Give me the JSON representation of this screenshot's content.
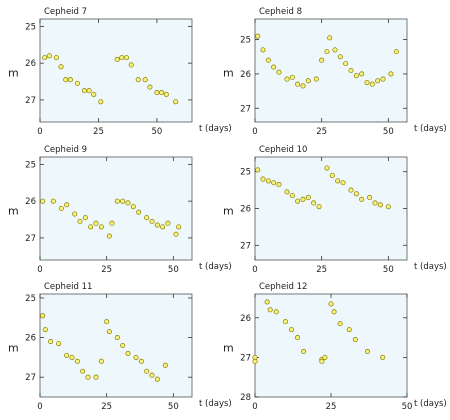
{
  "chart_data": [
    {
      "type": "scatter",
      "title": "Cepheid 7",
      "ylabel": "m",
      "xlabel": "t (days)",
      "xlim": [
        0,
        65
      ],
      "ylim": [
        27.6,
        24.8
      ],
      "xticks": [
        "0",
        "25",
        "50"
      ],
      "yticks": [
        "25",
        "26",
        "27"
      ],
      "points": [
        [
          2,
          25.85
        ],
        [
          4,
          25.8
        ],
        [
          7,
          25.85
        ],
        [
          9,
          26.1
        ],
        [
          11,
          26.45
        ],
        [
          13,
          26.45
        ],
        [
          16,
          26.55
        ],
        [
          19,
          26.75
        ],
        [
          21,
          26.75
        ],
        [
          23,
          26.85
        ],
        [
          26,
          27.05
        ],
        [
          33,
          25.9
        ],
        [
          35,
          25.85
        ],
        [
          37,
          25.85
        ],
        [
          39,
          26.05
        ],
        [
          42,
          26.45
        ],
        [
          45,
          26.45
        ],
        [
          47,
          26.65
        ],
        [
          50,
          26.8
        ],
        [
          52,
          26.8
        ],
        [
          54,
          26.85
        ],
        [
          58,
          27.05
        ]
      ]
    },
    {
      "type": "scatter",
      "title": "Cepheid 8",
      "ylabel": "m",
      "xlabel": "t (days)",
      "xlim": [
        0,
        57
      ],
      "ylim": [
        27.4,
        24.4
      ],
      "xticks": [
        "0",
        "25",
        "50"
      ],
      "yticks": [
        "25",
        "26",
        "27"
      ],
      "points": [
        [
          1,
          24.9
        ],
        [
          3,
          25.3
        ],
        [
          5,
          25.6
        ],
        [
          7,
          25.8
        ],
        [
          9,
          25.95
        ],
        [
          12,
          26.15
        ],
        [
          14,
          26.1
        ],
        [
          16,
          26.3
        ],
        [
          18,
          26.35
        ],
        [
          20,
          26.2
        ],
        [
          23,
          26.15
        ],
        [
          25,
          25.6
        ],
        [
          27,
          25.35
        ],
        [
          28,
          24.95
        ],
        [
          30,
          25.3
        ],
        [
          32,
          25.5
        ],
        [
          34,
          25.7
        ],
        [
          36,
          25.9
        ],
        [
          38,
          26.05
        ],
        [
          40,
          26.0
        ],
        [
          42,
          26.25
        ],
        [
          44,
          26.3
        ],
        [
          46,
          26.2
        ],
        [
          48,
          26.15
        ],
        [
          51,
          26.0
        ],
        [
          53,
          25.35
        ]
      ]
    },
    {
      "type": "scatter",
      "title": "Cepheid 9",
      "ylabel": "m",
      "xlabel": "t (days)",
      "xlim": [
        0,
        57
      ],
      "ylim": [
        27.6,
        24.8
      ],
      "xticks": [
        "0",
        "25",
        "50"
      ],
      "yticks": [
        "25",
        "26",
        "27"
      ],
      "points": [
        [
          1,
          26.0
        ],
        [
          5,
          26.0
        ],
        [
          8,
          26.2
        ],
        [
          10,
          26.1
        ],
        [
          13,
          26.35
        ],
        [
          15,
          26.55
        ],
        [
          17,
          26.45
        ],
        [
          19,
          26.7
        ],
        [
          21,
          26.6
        ],
        [
          23,
          26.7
        ],
        [
          26,
          26.95
        ],
        [
          27,
          26.6
        ],
        [
          29,
          26.0
        ],
        [
          31,
          26.0
        ],
        [
          33,
          26.05
        ],
        [
          35,
          26.15
        ],
        [
          37,
          26.3
        ],
        [
          40,
          26.45
        ],
        [
          42,
          26.55
        ],
        [
          44,
          26.65
        ],
        [
          46,
          26.7
        ],
        [
          48,
          26.6
        ],
        [
          51,
          26.9
        ],
        [
          52,
          26.7
        ]
      ]
    },
    {
      "type": "scatter",
      "title": "Cepheid 10",
      "ylabel": "m",
      "xlabel": "t (days)",
      "xlim": [
        0,
        57
      ],
      "ylim": [
        27.4,
        24.6
      ],
      "xticks": [
        "0",
        "25",
        "50"
      ],
      "yticks": [
        "25",
        "26",
        "27"
      ],
      "points": [
        [
          1,
          24.95
        ],
        [
          3,
          25.2
        ],
        [
          5,
          25.25
        ],
        [
          7,
          25.3
        ],
        [
          9,
          25.35
        ],
        [
          12,
          25.55
        ],
        [
          14,
          25.65
        ],
        [
          16,
          25.8
        ],
        [
          18,
          25.75
        ],
        [
          20,
          25.7
        ],
        [
          22,
          25.85
        ],
        [
          24,
          25.95
        ],
        [
          27,
          24.9
        ],
        [
          29,
          25.1
        ],
        [
          31,
          25.25
        ],
        [
          33,
          25.3
        ],
        [
          36,
          25.5
        ],
        [
          38,
          25.6
        ],
        [
          40,
          25.75
        ],
        [
          43,
          25.7
        ],
        [
          45,
          25.85
        ],
        [
          47,
          25.9
        ],
        [
          50,
          25.95
        ]
      ]
    },
    {
      "type": "scatter",
      "title": "Cepheid 11",
      "ylabel": "m",
      "xlabel": "t (days)",
      "xlim": [
        0,
        57
      ],
      "ylim": [
        27.5,
        24.9
      ],
      "xticks": [
        "0",
        "25",
        "50"
      ],
      "yticks": [
        "25",
        "26",
        "27"
      ],
      "points": [
        [
          1,
          25.45
        ],
        [
          2,
          25.8
        ],
        [
          4,
          26.1
        ],
        [
          7,
          26.15
        ],
        [
          10,
          26.45
        ],
        [
          12,
          26.5
        ],
        [
          14,
          26.6
        ],
        [
          16,
          26.85
        ],
        [
          18,
          27.0
        ],
        [
          21,
          27.0
        ],
        [
          23,
          26.6
        ],
        [
          25,
          25.6
        ],
        [
          26,
          25.85
        ],
        [
          29,
          26.0
        ],
        [
          31,
          26.2
        ],
        [
          33,
          26.4
        ],
        [
          36,
          26.5
        ],
        [
          38,
          26.6
        ],
        [
          40,
          26.85
        ],
        [
          42,
          26.95
        ],
        [
          44,
          27.05
        ],
        [
          47,
          26.7
        ]
      ]
    },
    {
      "type": "scatter",
      "title": "Cepheid 12",
      "ylabel": "m",
      "xlabel": "t (days)",
      "xlim": [
        0,
        50
      ],
      "ylim": [
        28.0,
        25.4
      ],
      "xticks": [
        "0",
        "25",
        "50"
      ],
      "yticks": [
        "26",
        "27",
        "28"
      ],
      "points": [
        [
          0,
          27.0
        ],
        [
          0,
          27.1
        ],
        [
          4,
          25.6
        ],
        [
          5,
          25.8
        ],
        [
          7,
          25.85
        ],
        [
          10,
          26.1
        ],
        [
          12,
          26.3
        ],
        [
          14,
          26.5
        ],
        [
          16,
          26.85
        ],
        [
          22,
          27.05
        ],
        [
          22,
          27.1
        ],
        [
          23,
          27.0
        ],
        [
          25,
          25.65
        ],
        [
          26,
          25.85
        ],
        [
          28,
          26.15
        ],
        [
          31,
          26.3
        ],
        [
          33,
          26.55
        ],
        [
          37,
          26.85
        ],
        [
          42,
          27.0
        ]
      ]
    }
  ]
}
